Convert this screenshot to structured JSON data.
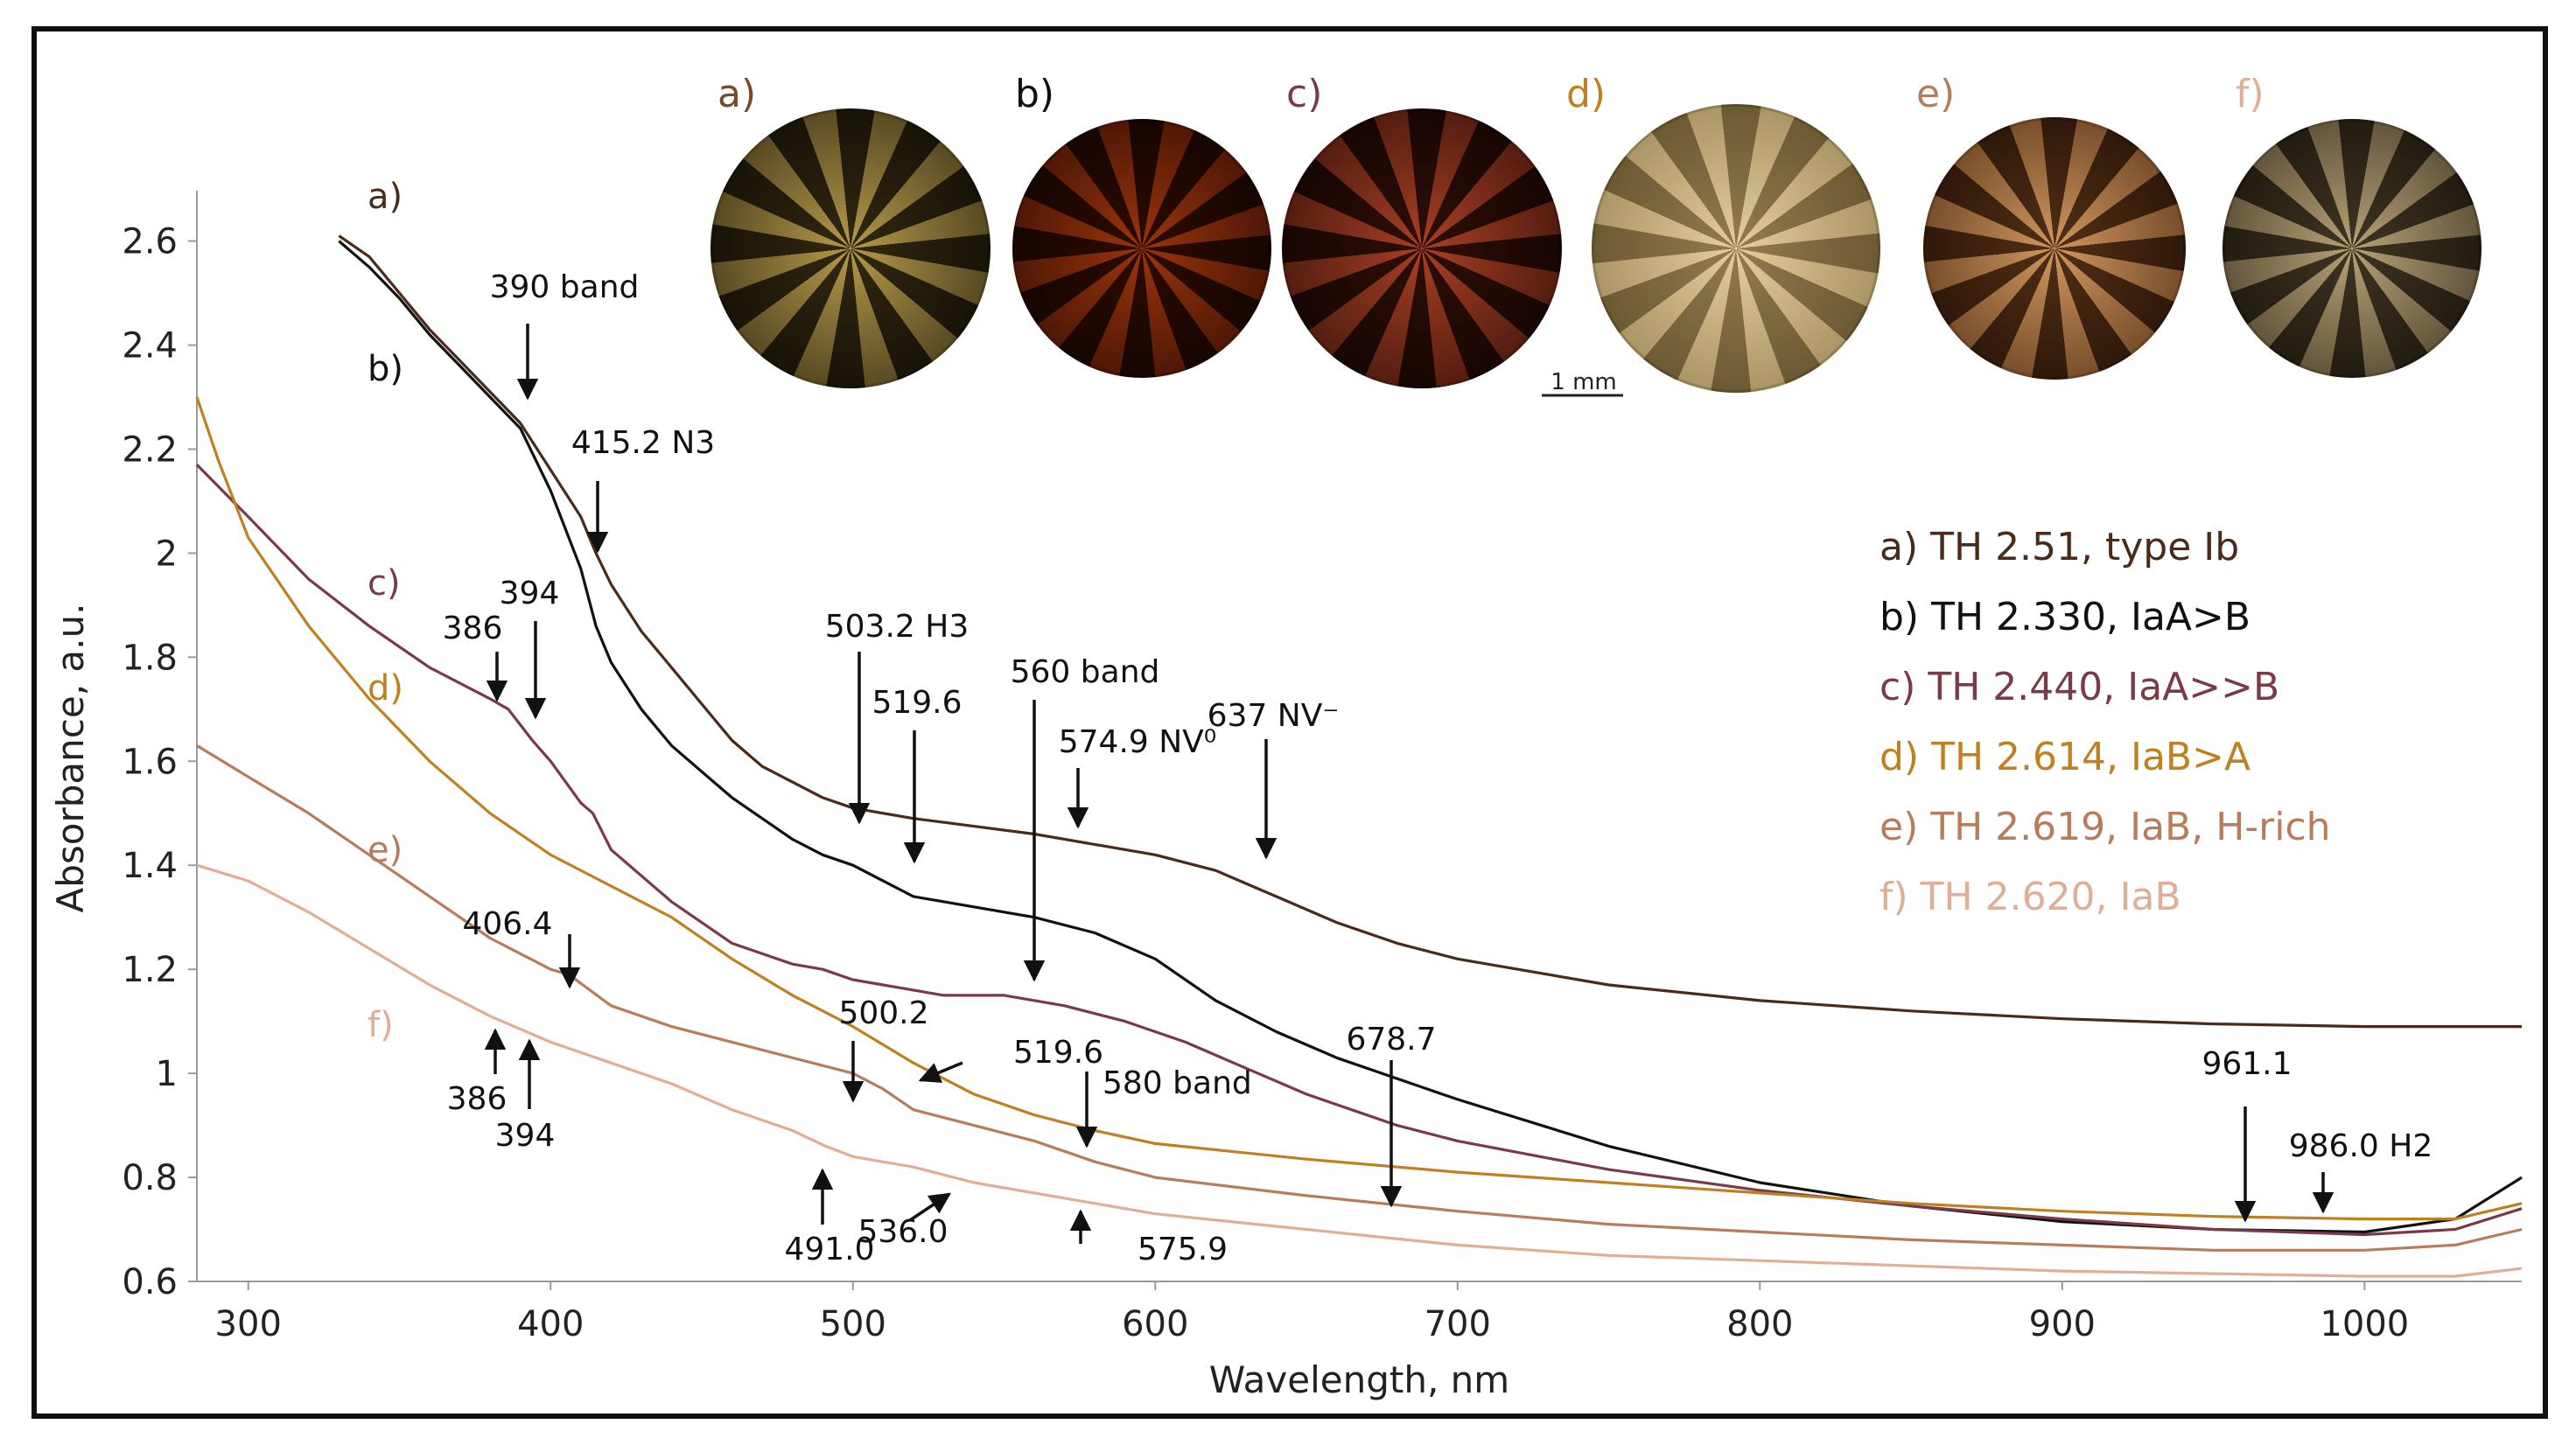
{
  "chart_data": {
    "type": "line",
    "title": "",
    "xlabel": "Wavelength, nm",
    "ylabel": "Absorbance, a.u.",
    "xlim": [
      283,
      1052
    ],
    "ylim": [
      0.6,
      2.68
    ],
    "xticks": [
      "300",
      "400",
      "500",
      "600",
      "700",
      "800",
      "900",
      "1000"
    ],
    "yticks": [
      "0.6",
      "0.8",
      "1",
      "1.2",
      "1.4",
      "1.6",
      "1.8",
      "2",
      "2.2",
      "2.4",
      "2.6"
    ],
    "series": [
      {
        "name": "a) TH 2.51, type Ib",
        "label": "a)",
        "color": "#4a2a18",
        "points": [
          [
            330,
            2.61
          ],
          [
            340,
            2.57
          ],
          [
            350,
            2.5
          ],
          [
            360,
            2.43
          ],
          [
            370,
            2.37
          ],
          [
            380,
            2.31
          ],
          [
            390,
            2.25
          ],
          [
            400,
            2.16
          ],
          [
            410,
            2.07
          ],
          [
            415,
            2.0
          ],
          [
            420,
            1.94
          ],
          [
            430,
            1.85
          ],
          [
            440,
            1.78
          ],
          [
            450,
            1.71
          ],
          [
            460,
            1.64
          ],
          [
            470,
            1.59
          ],
          [
            480,
            1.56
          ],
          [
            490,
            1.53
          ],
          [
            500,
            1.51
          ],
          [
            520,
            1.49
          ],
          [
            540,
            1.475
          ],
          [
            560,
            1.46
          ],
          [
            580,
            1.44
          ],
          [
            600,
            1.42
          ],
          [
            620,
            1.39
          ],
          [
            640,
            1.34
          ],
          [
            660,
            1.29
          ],
          [
            680,
            1.25
          ],
          [
            700,
            1.22
          ],
          [
            750,
            1.17
          ],
          [
            800,
            1.14
          ],
          [
            850,
            1.12
          ],
          [
            900,
            1.105
          ],
          [
            950,
            1.095
          ],
          [
            1000,
            1.09
          ],
          [
            1052,
            1.09
          ]
        ]
      },
      {
        "name": "b) TH 2.330, IaA>B",
        "label": "b)",
        "color": "#111111",
        "points": [
          [
            330,
            2.6
          ],
          [
            340,
            2.55
          ],
          [
            350,
            2.49
          ],
          [
            360,
            2.42
          ],
          [
            370,
            2.36
          ],
          [
            380,
            2.3
          ],
          [
            390,
            2.24
          ],
          [
            400,
            2.12
          ],
          [
            410,
            1.97
          ],
          [
            415,
            1.86
          ],
          [
            420,
            1.79
          ],
          [
            430,
            1.7
          ],
          [
            440,
            1.63
          ],
          [
            450,
            1.58
          ],
          [
            460,
            1.53
          ],
          [
            470,
            1.49
          ],
          [
            480,
            1.45
          ],
          [
            490,
            1.42
          ],
          [
            500,
            1.4
          ],
          [
            510,
            1.37
          ],
          [
            520,
            1.34
          ],
          [
            540,
            1.32
          ],
          [
            560,
            1.3
          ],
          [
            580,
            1.27
          ],
          [
            600,
            1.22
          ],
          [
            620,
            1.14
          ],
          [
            640,
            1.08
          ],
          [
            660,
            1.03
          ],
          [
            680,
            0.99
          ],
          [
            700,
            0.95
          ],
          [
            750,
            0.86
          ],
          [
            800,
            0.79
          ],
          [
            850,
            0.745
          ],
          [
            900,
            0.715
          ],
          [
            950,
            0.7
          ],
          [
            1000,
            0.695
          ],
          [
            1030,
            0.72
          ],
          [
            1052,
            0.8
          ]
        ]
      },
      {
        "name": "c) TH 2.440, IaA>>B",
        "label": "c)",
        "color": "#7a3a48",
        "points": [
          [
            283,
            2.17
          ],
          [
            300,
            2.07
          ],
          [
            320,
            1.95
          ],
          [
            340,
            1.86
          ],
          [
            360,
            1.78
          ],
          [
            380,
            1.72
          ],
          [
            386,
            1.7
          ],
          [
            394,
            1.64
          ],
          [
            400,
            1.6
          ],
          [
            410,
            1.52
          ],
          [
            414,
            1.5
          ],
          [
            420,
            1.43
          ],
          [
            440,
            1.33
          ],
          [
            460,
            1.25
          ],
          [
            480,
            1.21
          ],
          [
            490,
            1.2
          ],
          [
            500,
            1.18
          ],
          [
            510,
            1.17
          ],
          [
            530,
            1.15
          ],
          [
            550,
            1.15
          ],
          [
            570,
            1.13
          ],
          [
            590,
            1.1
          ],
          [
            610,
            1.06
          ],
          [
            630,
            1.01
          ],
          [
            650,
            0.96
          ],
          [
            680,
            0.9
          ],
          [
            700,
            0.87
          ],
          [
            750,
            0.815
          ],
          [
            800,
            0.775
          ],
          [
            850,
            0.745
          ],
          [
            900,
            0.72
          ],
          [
            950,
            0.7
          ],
          [
            1000,
            0.69
          ],
          [
            1030,
            0.7
          ],
          [
            1052,
            0.74
          ]
        ]
      },
      {
        "name": "d) TH 2.614, IaB>A",
        "label": "d)",
        "color": "#c08020",
        "points": [
          [
            283,
            2.3
          ],
          [
            290,
            2.18
          ],
          [
            300,
            2.03
          ],
          [
            320,
            1.86
          ],
          [
            340,
            1.72
          ],
          [
            360,
            1.6
          ],
          [
            380,
            1.5
          ],
          [
            400,
            1.42
          ],
          [
            420,
            1.36
          ],
          [
            440,
            1.3
          ],
          [
            460,
            1.22
          ],
          [
            480,
            1.15
          ],
          [
            500,
            1.09
          ],
          [
            520,
            1.02
          ],
          [
            540,
            0.96
          ],
          [
            560,
            0.92
          ],
          [
            580,
            0.89
          ],
          [
            600,
            0.865
          ],
          [
            650,
            0.835
          ],
          [
            700,
            0.81
          ],
          [
            750,
            0.79
          ],
          [
            800,
            0.77
          ],
          [
            850,
            0.75
          ],
          [
            900,
            0.735
          ],
          [
            950,
            0.725
          ],
          [
            1000,
            0.72
          ],
          [
            1030,
            0.72
          ],
          [
            1052,
            0.75
          ]
        ]
      },
      {
        "name": "e) TH 2.619, IaB, H-rich",
        "label": "e)",
        "color": "#b87c5a",
        "points": [
          [
            283,
            1.63
          ],
          [
            300,
            1.57
          ],
          [
            320,
            1.5
          ],
          [
            340,
            1.42
          ],
          [
            360,
            1.34
          ],
          [
            380,
            1.26
          ],
          [
            400,
            1.2
          ],
          [
            406,
            1.19
          ],
          [
            420,
            1.13
          ],
          [
            440,
            1.09
          ],
          [
            460,
            1.06
          ],
          [
            480,
            1.03
          ],
          [
            500,
            1.0
          ],
          [
            510,
            0.97
          ],
          [
            520,
            0.93
          ],
          [
            540,
            0.9
          ],
          [
            560,
            0.87
          ],
          [
            580,
            0.83
          ],
          [
            600,
            0.8
          ],
          [
            650,
            0.765
          ],
          [
            700,
            0.735
          ],
          [
            750,
            0.71
          ],
          [
            800,
            0.695
          ],
          [
            850,
            0.68
          ],
          [
            900,
            0.67
          ],
          [
            950,
            0.66
          ],
          [
            1000,
            0.66
          ],
          [
            1030,
            0.67
          ],
          [
            1052,
            0.7
          ]
        ]
      },
      {
        "name": "f) TH 2.620, IaB",
        "label": "f)",
        "color": "#e0ae94",
        "points": [
          [
            283,
            1.4
          ],
          [
            300,
            1.37
          ],
          [
            320,
            1.31
          ],
          [
            340,
            1.24
          ],
          [
            360,
            1.17
          ],
          [
            380,
            1.11
          ],
          [
            400,
            1.06
          ],
          [
            420,
            1.02
          ],
          [
            440,
            0.98
          ],
          [
            460,
            0.93
          ],
          [
            480,
            0.89
          ],
          [
            491,
            0.86
          ],
          [
            500,
            0.84
          ],
          [
            520,
            0.82
          ],
          [
            540,
            0.79
          ],
          [
            560,
            0.77
          ],
          [
            580,
            0.75
          ],
          [
            600,
            0.73
          ],
          [
            650,
            0.7
          ],
          [
            700,
            0.67
          ],
          [
            750,
            0.65
          ],
          [
            800,
            0.64
          ],
          [
            850,
            0.63
          ],
          [
            900,
            0.62
          ],
          [
            950,
            0.615
          ],
          [
            1000,
            0.61
          ],
          [
            1030,
            0.61
          ],
          [
            1052,
            0.625
          ]
        ]
      }
    ],
    "annotations": [
      {
        "text": "390 band",
        "x": 390,
        "y": 2.24,
        "arrow": "down"
      },
      {
        "text": "415.2 N3",
        "x": 415,
        "y": 1.96,
        "arrow": "down"
      },
      {
        "text": "394",
        "x": 394,
        "y": 1.64,
        "arrow": "down"
      },
      {
        "text": "386",
        "x": 386,
        "y": 1.7,
        "arrow": "down"
      },
      {
        "text": "503.2 H3",
        "x": 503,
        "y": 1.47,
        "arrow": "down"
      },
      {
        "text": "519.6",
        "x": 519,
        "y": 1.35,
        "arrow": "down"
      },
      {
        "text": "560 band",
        "x": 560,
        "y": 1.15,
        "arrow": "down"
      },
      {
        "text": "574.9 NV⁰",
        "x": 574,
        "y": 1.44,
        "arrow": "down"
      },
      {
        "text": "637 NV⁻",
        "x": 637,
        "y": 1.37,
        "arrow": "down"
      },
      {
        "text": "406.4",
        "x": 406,
        "y": 1.19,
        "arrow": "down"
      },
      {
        "text": "500.2",
        "x": 500,
        "y": 1.0,
        "arrow": "down"
      },
      {
        "text": "519.6",
        "x": 525,
        "y": 0.96,
        "arrow": "left-down"
      },
      {
        "text": "580 band",
        "x": 580,
        "y": 0.87,
        "arrow": "down"
      },
      {
        "text": "678.7",
        "x": 678,
        "y": 0.75,
        "arrow": "down"
      },
      {
        "text": "386",
        "x": 386,
        "y": 1.07,
        "arrow": "up"
      },
      {
        "text": "394",
        "x": 394,
        "y": 1.06,
        "arrow": "up"
      },
      {
        "text": "491.0",
        "x": 491,
        "y": 0.86,
        "arrow": "up"
      },
      {
        "text": "536.0",
        "x": 536,
        "y": 0.8,
        "arrow": "up-right"
      },
      {
        "text": "575.9",
        "x": 575,
        "y": 0.75,
        "arrow": "up"
      },
      {
        "text": "961.1",
        "x": 961,
        "y": 0.7,
        "arrow": "down"
      },
      {
        "text": "986.0 H2",
        "x": 986,
        "y": 0.7,
        "arrow": "down"
      }
    ],
    "legend_position": "right",
    "grid": false
  },
  "photos": {
    "labels": [
      "a)",
      "b)",
      "c)",
      "d)",
      "e)",
      "f)"
    ],
    "label_colors": [
      "#7a4a28",
      "#111111",
      "#7a3a48",
      "#c08020",
      "#b87c5a",
      "#e0ae94"
    ],
    "scale_bar": "1 mm"
  }
}
